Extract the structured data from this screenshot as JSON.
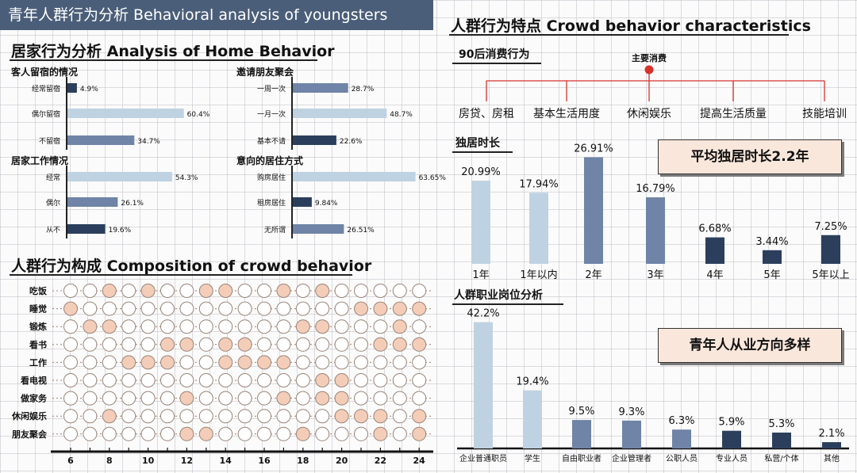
{
  "page": {
    "main_title": "青年人群行为分析 Behavioral analysis of youngsters",
    "home_title": "居家行为分析 Analysis of Home Behavior",
    "composition_title": "人群行为构成 Composition of crowd behavior",
    "crowd_title": "人群行为特点 Crowd behavior characteristics",
    "consumption_title": "90后消费行为",
    "living_alone_title": "独居时长",
    "job_title": "人群职业岗位分析",
    "note_living_alone": "平均独居时长2.2年",
    "note_jobs": "青年人从业方向多样"
  },
  "colors": {
    "light": "#bfd2e1",
    "mid": "#6f84a6",
    "dark": "#2b3f5c",
    "accent": "#d9322c",
    "dot_fill": "#f4cdb8"
  },
  "chart_data": [
    {
      "id": "guest-stay",
      "type": "bar",
      "orientation": "horizontal",
      "title": "客人留宿的情况",
      "categories": [
        "经常留宿",
        "偶尔留宿",
        "不留宿"
      ],
      "values": [
        4.9,
        60.4,
        34.7
      ],
      "labels": [
        "4.9%",
        "60.4%",
        "34.7%"
      ],
      "shades": [
        "dark",
        "light",
        "mid"
      ],
      "xlim": [
        0,
        70
      ]
    },
    {
      "id": "invite-friends",
      "type": "bar",
      "orientation": "horizontal",
      "title": "邀请朋友聚会",
      "categories": [
        "一周一次",
        "一月一次",
        "基本不请"
      ],
      "values": [
        28.7,
        48.7,
        22.6
      ],
      "labels": [
        "28.7%",
        "48.7%",
        "22.6%"
      ],
      "shades": [
        "mid",
        "light",
        "dark"
      ],
      "xlim": [
        0,
        70
      ]
    },
    {
      "id": "home-work",
      "type": "bar",
      "orientation": "horizontal",
      "title": "居家工作情况",
      "categories": [
        "经常",
        "偶尔",
        "从不"
      ],
      "values": [
        54.3,
        26.1,
        19.6
      ],
      "labels": [
        "54.3%",
        "26.1%",
        "19.6%"
      ],
      "shades": [
        "light",
        "mid",
        "dark"
      ],
      "xlim": [
        0,
        70
      ]
    },
    {
      "id": "living-mode",
      "type": "bar",
      "orientation": "horizontal",
      "title": "意向的居住方式",
      "categories": [
        "购房居住",
        "租房居住",
        "无所谓"
      ],
      "values": [
        63.65,
        9.84,
        26.51
      ],
      "labels": [
        "63.65%",
        "9.84%",
        "26.51%"
      ],
      "shades": [
        "light",
        "dark",
        "mid"
      ],
      "xlim": [
        0,
        70
      ]
    },
    {
      "id": "composition",
      "type": "dot-matrix",
      "rows": [
        "吃饭",
        "睡觉",
        "锻炼",
        "看书",
        "工作",
        "看电视",
        "做家务",
        "休闲娱乐",
        "朋友聚会"
      ],
      "x": [
        6,
        7,
        8,
        9,
        10,
        11,
        12,
        13,
        14,
        15,
        16,
        17,
        18,
        19,
        20,
        21,
        22,
        23,
        24
      ],
      "xticks": [
        "6",
        "8",
        "10",
        "12",
        "14",
        "16",
        "18",
        "20",
        "22",
        "24"
      ],
      "filled": [
        [
          0,
          0,
          1,
          0,
          1,
          0,
          0,
          1,
          1,
          0,
          0,
          1,
          0,
          1,
          0,
          0,
          0,
          0,
          0
        ],
        [
          1,
          0,
          0,
          0,
          0,
          0,
          0,
          0,
          0,
          0,
          0,
          0,
          0,
          0,
          0,
          1,
          1,
          1,
          1
        ],
        [
          0,
          1,
          1,
          0,
          0,
          0,
          0,
          0,
          0,
          0,
          0,
          0,
          1,
          1,
          0,
          0,
          0,
          1,
          0
        ],
        [
          0,
          0,
          0,
          0,
          0,
          1,
          1,
          0,
          1,
          1,
          0,
          0,
          0,
          0,
          0,
          0,
          1,
          1,
          1
        ],
        [
          0,
          0,
          0,
          1,
          1,
          1,
          0,
          0,
          1,
          1,
          1,
          1,
          0,
          0,
          0,
          0,
          0,
          0,
          0
        ],
        [
          0,
          0,
          0,
          0,
          0,
          0,
          0,
          0,
          0,
          0,
          0,
          0,
          0,
          1,
          1,
          0,
          0,
          0,
          0
        ],
        [
          0,
          0,
          0,
          0,
          0,
          0,
          1,
          0,
          0,
          0,
          0,
          1,
          0,
          1,
          1,
          0,
          0,
          0,
          0
        ],
        [
          0,
          0,
          1,
          0,
          0,
          0,
          0,
          0,
          0,
          0,
          0,
          0,
          0,
          0,
          1,
          1,
          1,
          0,
          1
        ],
        [
          0,
          0,
          0,
          0,
          0,
          0,
          1,
          1,
          0,
          0,
          0,
          0,
          1,
          0,
          0,
          0,
          1,
          0,
          1
        ]
      ]
    },
    {
      "id": "living-alone",
      "type": "bar",
      "categories": [
        "1年",
        "1年以内",
        "2年",
        "3年",
        "4年",
        "5年",
        "5年以上"
      ],
      "values": [
        20.99,
        17.94,
        26.91,
        16.79,
        6.68,
        3.44,
        7.25
      ],
      "labels": [
        "20.99%",
        "17.94%",
        "26.91%",
        "16.79%",
        "6.68%",
        "3.44%",
        "7.25%"
      ],
      "shades": [
        "light",
        "light",
        "mid",
        "mid",
        "dark",
        "dark",
        "dark"
      ],
      "ylim": [
        0,
        30
      ]
    },
    {
      "id": "jobs",
      "type": "bar",
      "categories": [
        "企业普通职员",
        "学生",
        "自由职业者",
        "企业管理者",
        "公职人员",
        "专业人员",
        "私营/个体",
        "其他"
      ],
      "values": [
        42.2,
        19.4,
        9.5,
        9.3,
        6.3,
        5.9,
        5.3,
        2.1
      ],
      "labels": [
        "42.2%",
        "19.4%",
        "9.5%",
        "9.3%",
        "6.3%",
        "5.9%",
        "5.3%",
        "2.1%"
      ],
      "shades": [
        "light",
        "light",
        "mid",
        "mid",
        "mid",
        "dark",
        "dark",
        "dark"
      ],
      "ylim": [
        0,
        45
      ]
    },
    {
      "id": "consumption",
      "type": "tree",
      "root": "主要消费",
      "children": [
        "房贷、房租",
        "基本生活用度",
        "休闲娱乐",
        "提高生活质量",
        "技能培训"
      ]
    }
  ]
}
